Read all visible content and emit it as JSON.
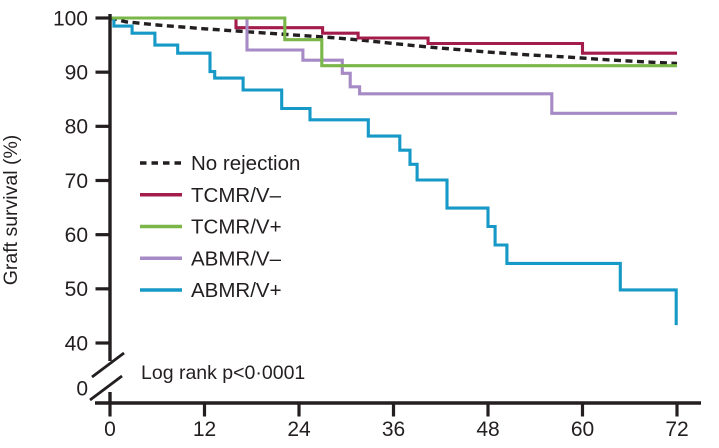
{
  "figure": {
    "kind": "kaplan-meier-survival-plot",
    "background": "#ffffff",
    "text_color": "#231F20",
    "axis_color": "#231F20"
  },
  "chart_data": {
    "type": "line",
    "title": "",
    "xlabel": "",
    "ylabel": "Graft survival (%)",
    "xlim": [
      0,
      72
    ],
    "xticks": [
      0,
      12,
      24,
      36,
      48,
      60,
      72
    ],
    "yticks": [
      100,
      90,
      80,
      70,
      60,
      50,
      40
    ],
    "y_break_label": "0",
    "y_axis_break": true,
    "grid": false,
    "legend_position": "inside-left-middle",
    "annotation": "Log rank p<0·0001",
    "series": [
      {
        "name": "No rejection",
        "color": "#231F20",
        "line_style": "dashed",
        "curve": "linear",
        "z": 0,
        "points": [
          [
            0,
            100
          ],
          [
            2,
            99.3
          ],
          [
            6,
            98.7
          ],
          [
            12,
            98.0
          ],
          [
            18,
            97.4
          ],
          [
            24,
            96.8
          ],
          [
            28,
            96.4
          ],
          [
            32,
            95.9
          ],
          [
            36,
            95.3
          ],
          [
            40,
            94.7
          ],
          [
            44,
            94.2
          ],
          [
            48,
            93.7
          ],
          [
            53,
            93.2
          ],
          [
            58,
            92.8
          ],
          [
            63,
            92.3
          ],
          [
            68,
            91.9
          ],
          [
            72,
            91.6
          ]
        ]
      },
      {
        "name": "TCMR/V–",
        "color": "#A31C4B",
        "line_style": "solid",
        "curve": "step",
        "z": 1,
        "points": [
          [
            0,
            100
          ],
          [
            16,
            98.2
          ],
          [
            27,
            97.2
          ],
          [
            31.5,
            96.3
          ],
          [
            40.4,
            95.3
          ],
          [
            60,
            93.5
          ],
          [
            72,
            93.5
          ]
        ]
      },
      {
        "name": "TCMR/V+",
        "color": "#7AB648",
        "line_style": "solid",
        "curve": "step",
        "z": 4,
        "points": [
          [
            0,
            100
          ],
          [
            22.2,
            96.0
          ],
          [
            26.9,
            91.2
          ],
          [
            72,
            91.2
          ]
        ]
      },
      {
        "name": "ABMR/V–",
        "color": "#A68AC5",
        "line_style": "solid",
        "curve": "step",
        "z": 2,
        "points": [
          [
            0,
            100
          ],
          [
            17.4,
            94.1
          ],
          [
            24.5,
            92.2
          ],
          [
            29.5,
            89.8
          ],
          [
            30.5,
            87.3
          ],
          [
            31.7,
            86.0
          ],
          [
            56.1,
            82.4
          ],
          [
            72,
            82.4
          ]
        ]
      },
      {
        "name": "ABMR/V+",
        "color": "#1699C6",
        "line_style": "solid",
        "curve": "step",
        "z": 3,
        "points": [
          [
            0,
            100
          ],
          [
            0.5,
            98.5
          ],
          [
            2.8,
            97.2
          ],
          [
            5.7,
            95.0
          ],
          [
            8.6,
            93.5
          ],
          [
            12.7,
            90.1
          ],
          [
            13.3,
            88.9
          ],
          [
            16.9,
            86.7
          ],
          [
            21.8,
            83.3
          ],
          [
            25.4,
            81.2
          ],
          [
            32.8,
            78.2
          ],
          [
            36.8,
            75.6
          ],
          [
            38.1,
            73.0
          ],
          [
            39,
            70.1
          ],
          [
            42.8,
            64.9
          ],
          [
            48,
            61.5
          ],
          [
            48.9,
            58.1
          ],
          [
            50.4,
            54.7
          ],
          [
            64.8,
            49.8
          ],
          [
            71.9,
            43.3
          ]
        ]
      }
    ]
  }
}
